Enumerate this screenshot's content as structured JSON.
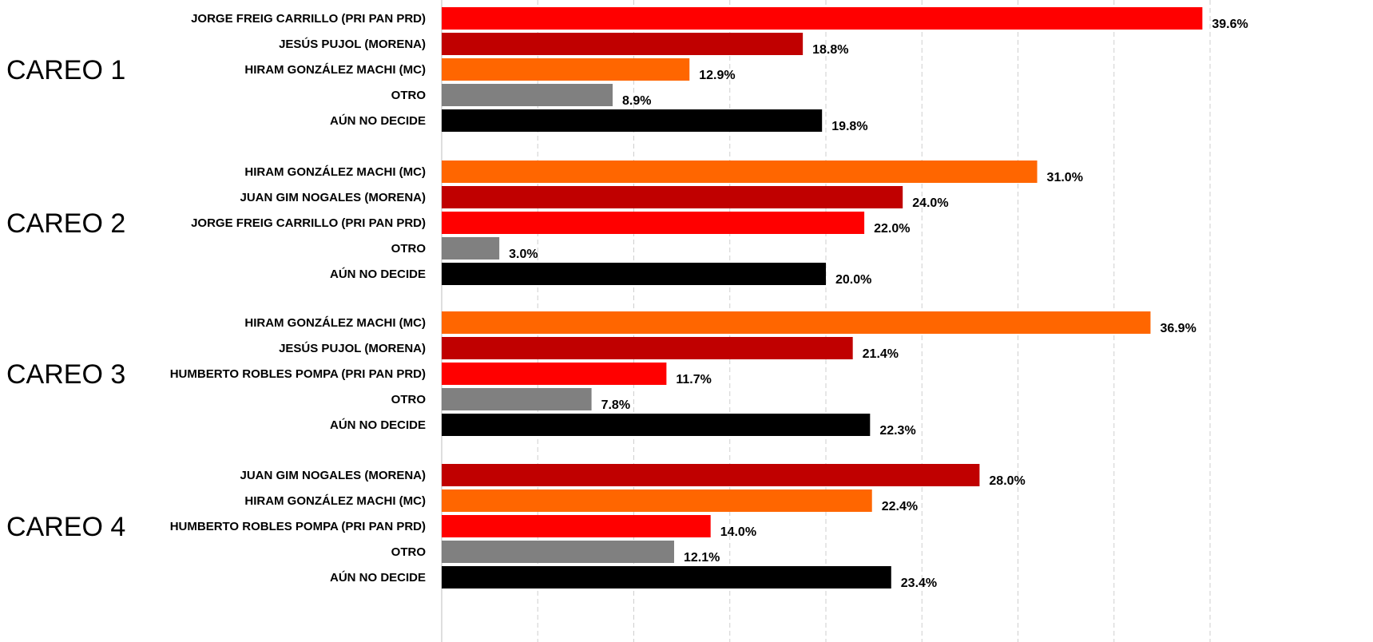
{
  "colors": {
    "pri_pan_prd": "#FF0000",
    "morena": "#C00000",
    "mc": "#FF6600",
    "otro": "#808080",
    "aun_no_decide": "#000000"
  },
  "chart_data": {
    "type": "bar",
    "orientation": "horizontal",
    "title": "",
    "xlabel": "",
    "ylabel": "",
    "xlim": [
      0,
      42
    ],
    "grid": true,
    "legend": "none",
    "value_format": "percent_one_decimal",
    "groups": [
      {
        "label": "CAREO 1",
        "bars": [
          {
            "label": "JORGE FREIG CARRILLO (PRI PAN PRD)",
            "value": 39.6,
            "value_label": "39.6%",
            "color": "#FF0000"
          },
          {
            "label": "JESÚS PUJOL (MORENA)",
            "value": 18.8,
            "value_label": "18.8%",
            "color": "#C00000"
          },
          {
            "label": "HIRAM GONZÁLEZ MACHI (MC)",
            "value": 12.9,
            "value_label": "12.9%",
            "color": "#FF6600"
          },
          {
            "label": "OTRO",
            "value": 8.9,
            "value_label": "8.9%",
            "color": "#808080"
          },
          {
            "label": "AÚN NO DECIDE",
            "value": 19.8,
            "value_label": "19.8%",
            "color": "#000000"
          }
        ]
      },
      {
        "label": "CAREO 2",
        "bars": [
          {
            "label": "HIRAM GONZÁLEZ MACHI (MC)",
            "value": 31.0,
            "value_label": "31.0%",
            "color": "#FF6600"
          },
          {
            "label": "JUAN GIM NOGALES (MORENA)",
            "value": 24.0,
            "value_label": "24.0%",
            "color": "#C00000"
          },
          {
            "label": "JORGE FREIG CARRILLO (PRI PAN PRD)",
            "value": 22.0,
            "value_label": "22.0%",
            "color": "#FF0000"
          },
          {
            "label": "OTRO",
            "value": 3.0,
            "value_label": "3.0%",
            "color": "#808080"
          },
          {
            "label": "AÚN NO DECIDE",
            "value": 20.0,
            "value_label": "20.0%",
            "color": "#000000"
          }
        ]
      },
      {
        "label": "CAREO 3",
        "bars": [
          {
            "label": "HIRAM GONZÁLEZ MACHI (MC)",
            "value": 36.9,
            "value_label": "36.9%",
            "color": "#FF6600"
          },
          {
            "label": "JESÚS PUJOL (MORENA)",
            "value": 21.4,
            "value_label": "21.4%",
            "color": "#C00000"
          },
          {
            "label": "HUMBERTO ROBLES POMPA (PRI PAN PRD)",
            "value": 11.7,
            "value_label": "11.7%",
            "color": "#FF0000"
          },
          {
            "label": "OTRO",
            "value": 7.8,
            "value_label": "7.8%",
            "color": "#808080"
          },
          {
            "label": "AÚN NO DECIDE",
            "value": 22.3,
            "value_label": "22.3%",
            "color": "#000000"
          }
        ]
      },
      {
        "label": "CAREO 4",
        "bars": [
          {
            "label": "JUAN GIM NOGALES (MORENA)",
            "value": 28.0,
            "value_label": "28.0%",
            "color": "#C00000"
          },
          {
            "label": "HIRAM GONZÁLEZ MACHI (MC)",
            "value": 22.4,
            "value_label": "22.4%",
            "color": "#FF6600"
          },
          {
            "label": "HUMBERTO ROBLES POMPA (PRI PAN PRD)",
            "value": 14.0,
            "value_label": "14.0%",
            "color": "#FF0000"
          },
          {
            "label": "OTRO",
            "value": 12.1,
            "value_label": "12.1%",
            "color": "#808080"
          },
          {
            "label": "AÚN NO DECIDE",
            "value": 23.4,
            "value_label": "23.4%",
            "color": "#000000"
          }
        ]
      }
    ]
  }
}
